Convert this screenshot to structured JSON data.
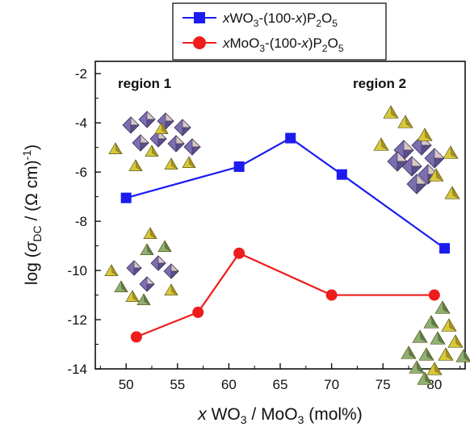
{
  "chart_data": {
    "type": "line",
    "xlabel": "x WO3 / MoO3 (mol%)",
    "ylabel": "log (σDC / (Ω cm)-1)",
    "xlim": [
      47,
      83
    ],
    "ylim": [
      -14,
      -1.5
    ],
    "x_ticks": [
      50,
      55,
      60,
      65,
      70,
      75,
      80
    ],
    "y_ticks": [
      -14,
      -12,
      -10,
      -8,
      -6,
      -4,
      -2
    ],
    "grid": false,
    "legend_position": "top-center",
    "annotations": [
      "region 1",
      "region 2"
    ],
    "series": [
      {
        "name": "xWO3-(100-x)P2O5",
        "color": "#1c1cf0",
        "marker": "square",
        "points": [
          [
            50,
            -7.05
          ],
          [
            61,
            -5.78
          ],
          [
            66,
            -4.62
          ],
          [
            71,
            -6.1
          ],
          [
            81,
            -9.1
          ]
        ]
      },
      {
        "name": "xMoO3-(100-x)P2O5",
        "color": "#ee1c1c",
        "marker": "circle",
        "points": [
          [
            51,
            -12.7
          ],
          [
            57,
            -11.7
          ],
          [
            61,
            -9.3
          ],
          [
            70,
            -11.0
          ],
          [
            80,
            -11.0
          ]
        ]
      }
    ]
  }
}
